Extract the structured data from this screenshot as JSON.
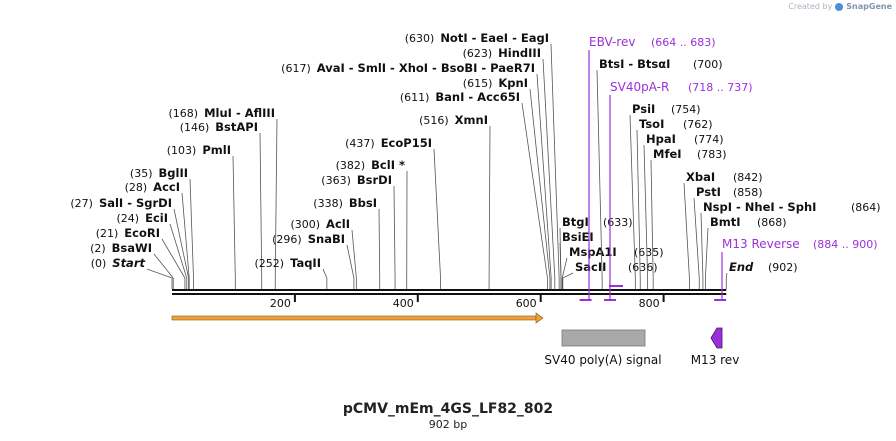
{
  "brand": {
    "prefix": "Created by",
    "name": "SnapGene"
  },
  "plasmid": {
    "name": "pCMV_mEm_4GS_LF82_802",
    "length_label": "902 bp",
    "length": 902
  },
  "axis": {
    "ticks": [
      200,
      400,
      600,
      800
    ]
  },
  "sites_left": [
    {
      "pos": "(0)",
      "name": "Start",
      "italic": true,
      "bp": 0
    },
    {
      "pos": "(2)",
      "name": "BsaWI",
      "bp": 2
    },
    {
      "pos": "(21)",
      "name": "EcoRI",
      "bp": 21
    },
    {
      "pos": "(24)",
      "name": "EciI",
      "bp": 24
    },
    {
      "pos": "(27)",
      "name": "SalI  -  SgrDI",
      "bp": 27
    },
    {
      "pos": "(28)",
      "name": "AccI",
      "bp": 28
    },
    {
      "pos": "(35)",
      "name": "BglII",
      "bp": 35
    },
    {
      "pos": "(103)",
      "name": "PmlI",
      "bp": 103
    },
    {
      "pos": "(146)",
      "name": "BstAPI",
      "bp": 146
    },
    {
      "pos": "(168)",
      "name": "MluI  -  AflIII",
      "bp": 168
    },
    {
      "pos": "(252)",
      "name": "TaqII",
      "bp": 252
    },
    {
      "pos": "(296)",
      "name": "SnaBI",
      "bp": 296
    },
    {
      "pos": "(300)",
      "name": "AclI",
      "bp": 300
    },
    {
      "pos": "(338)",
      "name": "BbsI",
      "bp": 338
    },
    {
      "pos": "(363)",
      "name": "BsrDI",
      "bp": 363
    },
    {
      "pos": "(382)",
      "name": "BclI *",
      "bp": 382
    },
    {
      "pos": "(437)",
      "name": "EcoP15I",
      "bp": 437
    },
    {
      "pos": "(516)",
      "name": "XmnI",
      "bp": 516
    },
    {
      "pos": "(611)",
      "name": "BanI  -  Acc65I",
      "bp": 611
    },
    {
      "pos": "(615)",
      "name": "KpnI",
      "bp": 615
    },
    {
      "pos": "(617)",
      "name": "AvaI  -  SmlI  -  XhoI  -  BsoBI  -  PaeR7I",
      "bp": 617
    },
    {
      "pos": "(623)",
      "name": "HindIII",
      "bp": 623
    },
    {
      "pos": "(630)",
      "name": "NotI  -  EaeI  -  EagI",
      "bp": 630
    }
  ],
  "sites_right": [
    {
      "name": "BtgI",
      "pos": "(633)",
      "bp": 633
    },
    {
      "name": "BsiEI",
      "bp": 633
    },
    {
      "name": "MspA1I",
      "pos": "(635)",
      "bp": 635
    },
    {
      "name": "SacII",
      "pos": "(636)",
      "bp": 636
    },
    {
      "name": "BtsI  -  BtsαI",
      "pos": "(700)",
      "bp": 700
    },
    {
      "name": "PsiI",
      "pos": "(754)",
      "bp": 754
    },
    {
      "name": "TsoI",
      "pos": "(762)",
      "bp": 762
    },
    {
      "name": "HpaI",
      "pos": "(774)",
      "bp": 774
    },
    {
      "name": "MfeI",
      "pos": "(783)",
      "bp": 783
    },
    {
      "name": "XbaI",
      "pos": "(842)",
      "bp": 842
    },
    {
      "name": "PstI",
      "pos": "(858)",
      "bp": 858
    },
    {
      "name": "NspI  -  NheI  -  SphI",
      "pos": "(864)",
      "bp": 864
    },
    {
      "name": "BmtI",
      "pos": "(868)",
      "bp": 868
    },
    {
      "name": "End",
      "pos": "(902)",
      "italic": true,
      "bp": 902
    }
  ],
  "primers": [
    {
      "name": "EBV-rev",
      "range": "(664 .. 683)",
      "bp": 673
    },
    {
      "name": "SV40pA-R",
      "range": "(718 .. 737)",
      "bp": 727
    },
    {
      "name": "M13 Reverse",
      "range": "(884 .. 900)",
      "bp": 892
    }
  ],
  "features": [
    {
      "name": "SV40 poly(A) signal",
      "start": 643,
      "end": 778
    },
    {
      "name": "M13 rev",
      "start": 884,
      "end": 900
    }
  ],
  "colors": {
    "primer": "#9b30d9",
    "feature_arrow": "#f0a040",
    "polyA": "#a9a9a9",
    "m13": "#9b30d9",
    "line": "#111111"
  }
}
